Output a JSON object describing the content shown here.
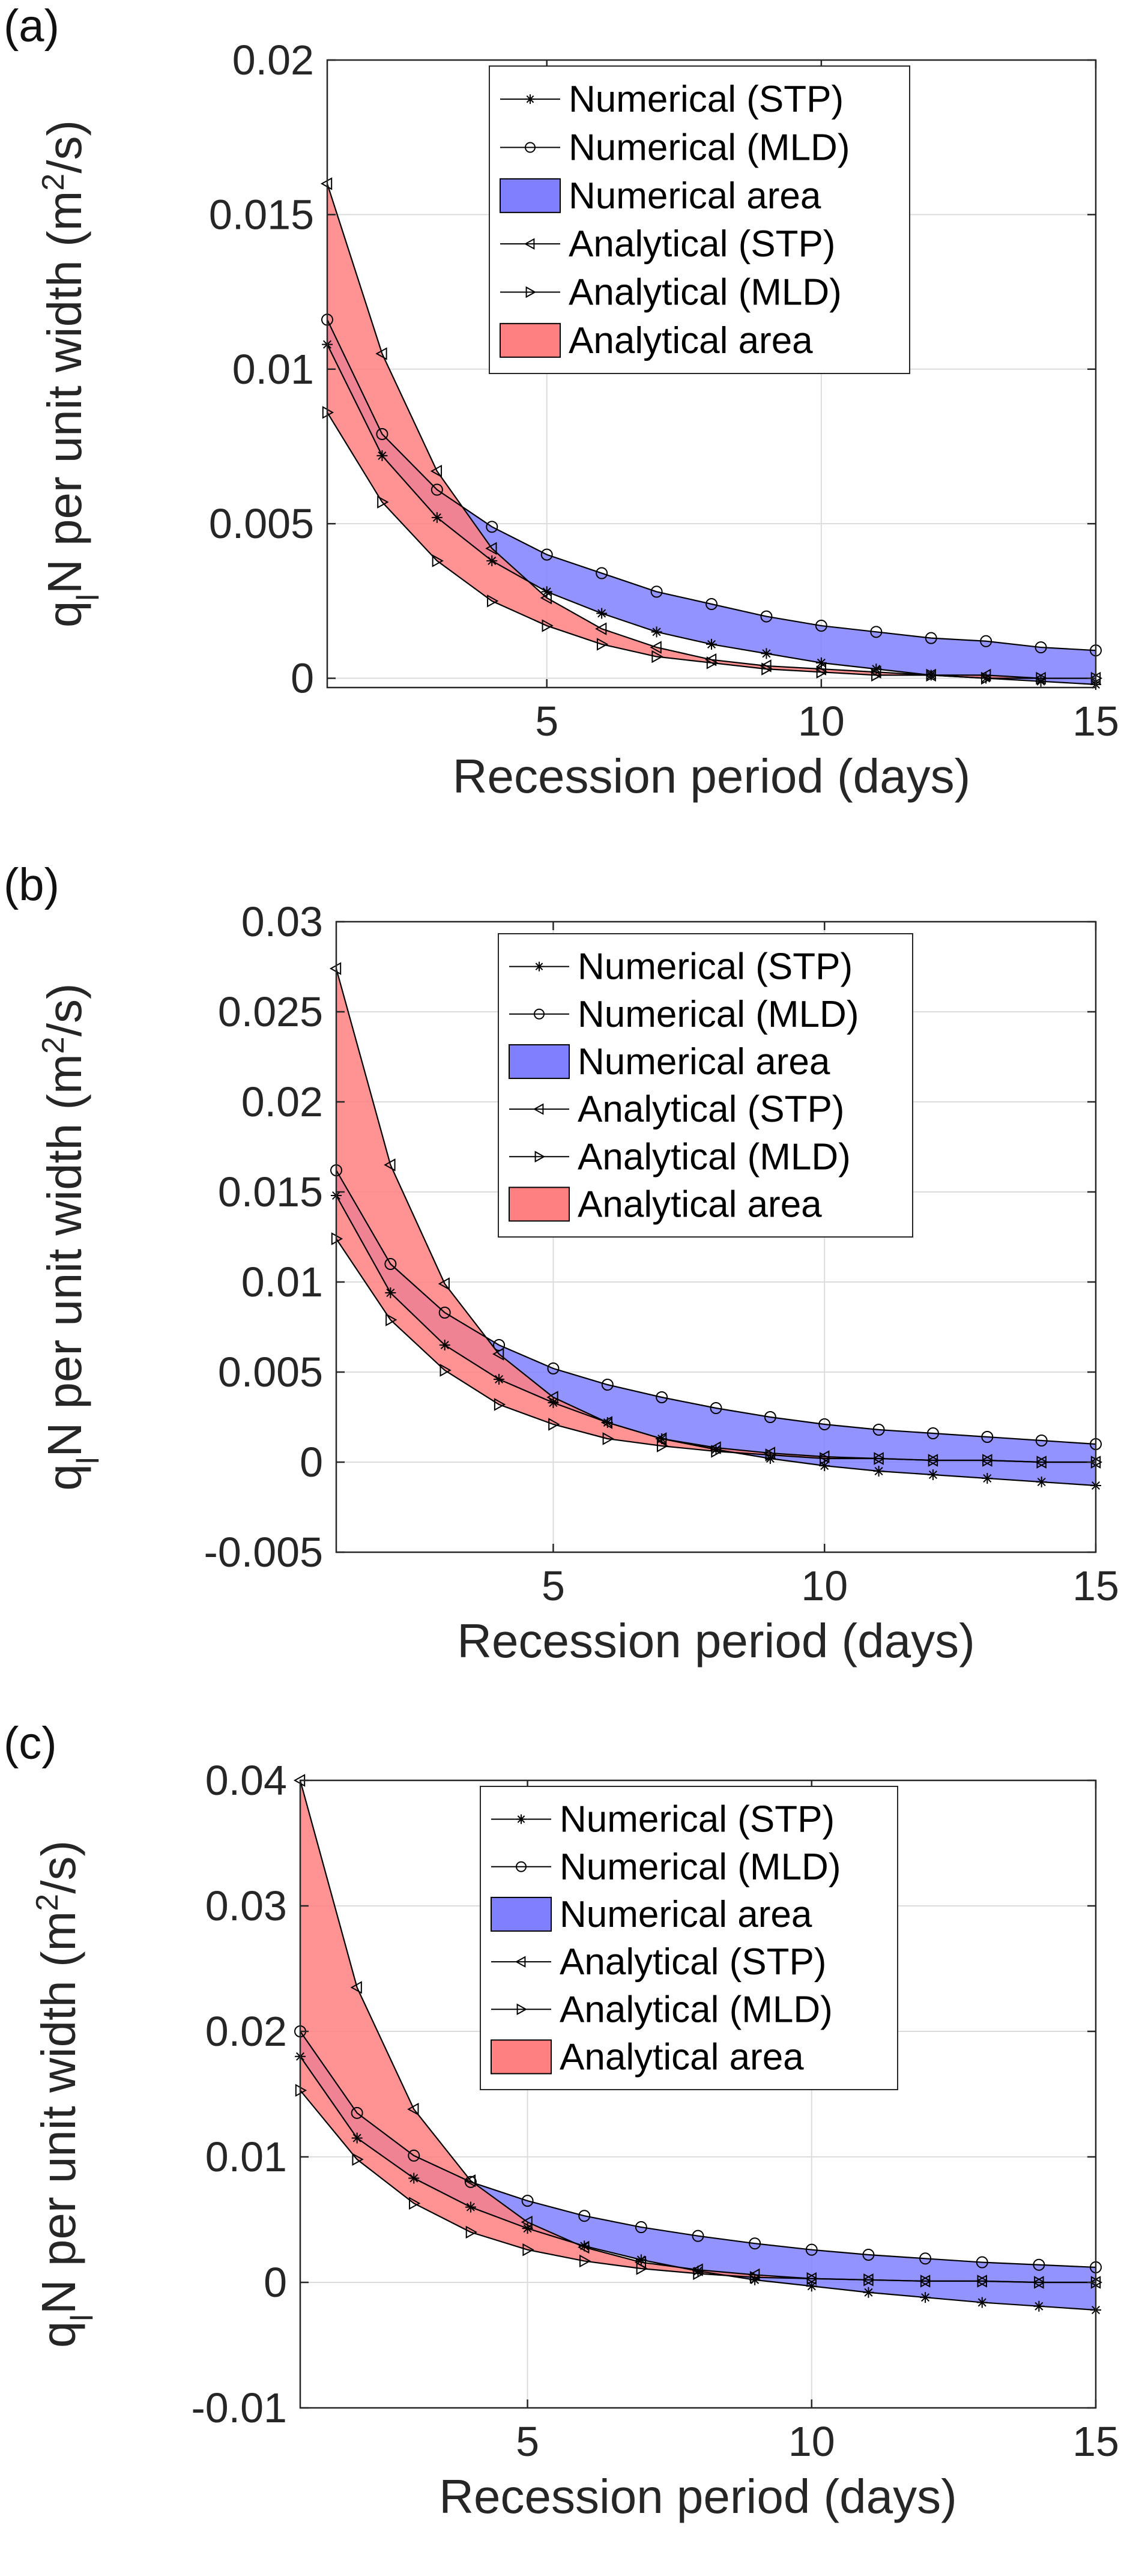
{
  "legend": [
    {
      "label": "Numerical (STP)",
      "kind": "line",
      "marker": "star"
    },
    {
      "label": "Numerical (MLD)",
      "kind": "line",
      "marker": "circle"
    },
    {
      "label": "Numerical area",
      "kind": "patch",
      "color": "#8080ff"
    },
    {
      "label": "Analytical (STP)",
      "kind": "line",
      "marker": "tri-left"
    },
    {
      "label": "Analytical (MLD)",
      "kind": "line",
      "marker": "tri-right"
    },
    {
      "label": "Analytical area",
      "kind": "patch",
      "color": "#ff8080"
    }
  ],
  "colors": {
    "numerical_area": "#8080ff",
    "analytical_area": "#ff8080",
    "line": "#000000",
    "grid": "#dcdcdc",
    "axes": "#262626"
  },
  "chart_data": [
    {
      "type": "area",
      "panel_label": "(a)",
      "xlabel": "Recession period (days)",
      "ylabel": "qlN per unit width (m²/s)",
      "ylabel_parts": {
        "q": "q",
        "sub": "l",
        "mid": "N per unit width (m",
        "sup": "2",
        "end": "/s)"
      },
      "xlim": [
        1,
        15
      ],
      "ylim": [
        -0.0003,
        0.02
      ],
      "xticks": [
        5,
        10,
        15
      ],
      "xtick_labels": [
        "5",
        "10",
        "15"
      ],
      "yticks": [
        0,
        0.005,
        0.01,
        0.015,
        0.02
      ],
      "ytick_labels": [
        "0",
        "0.005",
        "0.01",
        "0.015",
        "0.02"
      ],
      "grid": true,
      "legend_position": "top-right",
      "x": [
        1,
        2,
        3,
        4,
        5,
        6,
        7,
        8,
        9,
        10,
        11,
        12,
        13,
        14,
        15
      ],
      "series": [
        {
          "name": "Numerical (STP)",
          "marker": "star",
          "values": [
            0.0108,
            0.0072,
            0.0052,
            0.0038,
            0.0028,
            0.0021,
            0.0015,
            0.0011,
            0.0008,
            0.0005,
            0.0003,
            0.0001,
            0.0,
            -0.0001,
            -0.0002
          ]
        },
        {
          "name": "Numerical (MLD)",
          "marker": "circle",
          "values": [
            0.0116,
            0.0079,
            0.0061,
            0.0049,
            0.004,
            0.0034,
            0.0028,
            0.0024,
            0.002,
            0.0017,
            0.0015,
            0.0013,
            0.0012,
            0.001,
            0.0009
          ]
        },
        {
          "name": "Analytical (STP)",
          "marker": "tri-left",
          "values": [
            0.016,
            0.0105,
            0.0067,
            0.0042,
            0.0026,
            0.0016,
            0.001,
            0.0006,
            0.0004,
            0.0003,
            0.0002,
            0.0001,
            0.0001,
            0.0,
            0.0
          ]
        },
        {
          "name": "Analytical (MLD)",
          "marker": "tri-right",
          "values": [
            0.0086,
            0.0057,
            0.0038,
            0.0025,
            0.0017,
            0.0011,
            0.0007,
            0.0005,
            0.0003,
            0.0002,
            0.0001,
            0.0001,
            0.0,
            0.0,
            0.0
          ]
        }
      ],
      "areas": [
        {
          "name": "Numerical area",
          "between": [
            "Numerical (STP)",
            "Numerical (MLD)"
          ]
        },
        {
          "name": "Analytical area",
          "between": [
            "Analytical (STP)",
            "Analytical (MLD)"
          ]
        }
      ]
    },
    {
      "type": "area",
      "panel_label": "(b)",
      "xlabel": "Recession period (days)",
      "ylabel": "qlN per unit width (m²/s)",
      "ylabel_parts": {
        "q": "q",
        "sub": "l",
        "mid": "N per unit width (m",
        "sup": "2",
        "end": "/s)"
      },
      "xlim": [
        1,
        15
      ],
      "ylim": [
        -0.005,
        0.03
      ],
      "xticks": [
        5,
        10,
        15
      ],
      "xtick_labels": [
        "5",
        "10",
        "15"
      ],
      "yticks": [
        -0.005,
        0,
        0.005,
        0.01,
        0.015,
        0.02,
        0.025,
        0.03
      ],
      "ytick_labels": [
        "-0.005",
        "0",
        "0.005",
        "0.01",
        "0.015",
        "0.02",
        "0.025",
        "0.03"
      ],
      "grid": true,
      "legend_position": "top-right",
      "x": [
        1,
        2,
        3,
        4,
        5,
        6,
        7,
        8,
        9,
        10,
        11,
        12,
        13,
        14,
        15
      ],
      "series": [
        {
          "name": "Numerical (STP)",
          "marker": "star",
          "values": [
            0.0148,
            0.0094,
            0.0065,
            0.0046,
            0.0033,
            0.0022,
            0.0013,
            0.0007,
            0.0002,
            -0.0002,
            -0.0005,
            -0.0007,
            -0.0009,
            -0.0011,
            -0.0013
          ]
        },
        {
          "name": "Numerical (MLD)",
          "marker": "circle",
          "values": [
            0.0162,
            0.011,
            0.0083,
            0.0065,
            0.0052,
            0.0043,
            0.0036,
            0.003,
            0.0025,
            0.0021,
            0.0018,
            0.0016,
            0.0014,
            0.0012,
            0.001
          ]
        },
        {
          "name": "Analytical (STP)",
          "marker": "tri-left",
          "values": [
            0.0274,
            0.0165,
            0.0099,
            0.006,
            0.0036,
            0.0022,
            0.0013,
            0.0008,
            0.0005,
            0.0003,
            0.0002,
            0.0001,
            0.0001,
            0.0,
            0.0
          ]
        },
        {
          "name": "Analytical (MLD)",
          "marker": "tri-right",
          "values": [
            0.0124,
            0.0079,
            0.0051,
            0.0032,
            0.0021,
            0.0013,
            0.0009,
            0.0006,
            0.0004,
            0.0002,
            0.0002,
            0.0001,
            0.0001,
            0.0,
            0.0
          ]
        }
      ],
      "areas": [
        {
          "name": "Numerical area",
          "between": [
            "Numerical (STP)",
            "Numerical (MLD)"
          ]
        },
        {
          "name": "Analytical area",
          "between": [
            "Analytical (STP)",
            "Analytical (MLD)"
          ]
        }
      ]
    },
    {
      "type": "area",
      "panel_label": "(c)",
      "xlabel": "Recession period (days)",
      "ylabel": "qlN per unit width (m²/s)",
      "ylabel_parts": {
        "q": "q",
        "sub": "l",
        "mid": "N per unit width (m",
        "sup": "2",
        "end": "/s)"
      },
      "xlim": [
        1,
        15
      ],
      "ylim": [
        -0.01,
        0.04
      ],
      "xticks": [
        5,
        10,
        15
      ],
      "xtick_labels": [
        "5",
        "10",
        "15"
      ],
      "yticks": [
        -0.01,
        0,
        0.01,
        0.02,
        0.03,
        0.04
      ],
      "ytick_labels": [
        "-0.01",
        "0",
        "0.01",
        "0.02",
        "0.03",
        "0.04"
      ],
      "grid": true,
      "legend_position": "top-right",
      "x": [
        1,
        2,
        3,
        4,
        5,
        6,
        7,
        8,
        9,
        10,
        11,
        12,
        13,
        14,
        15
      ],
      "series": [
        {
          "name": "Numerical (STP)",
          "marker": "star",
          "values": [
            0.018,
            0.0115,
            0.0083,
            0.006,
            0.0043,
            0.0029,
            0.0018,
            0.0009,
            0.0002,
            -0.0003,
            -0.0008,
            -0.0012,
            -0.0016,
            -0.0019,
            -0.0022
          ]
        },
        {
          "name": "Numerical (MLD)",
          "marker": "circle",
          "values": [
            0.02,
            0.0135,
            0.0101,
            0.008,
            0.0065,
            0.0053,
            0.0044,
            0.0037,
            0.0031,
            0.0026,
            0.0022,
            0.0019,
            0.0016,
            0.0014,
            0.0012
          ]
        },
        {
          "name": "Analytical (STP)",
          "marker": "tri-left",
          "values": [
            0.04,
            0.0235,
            0.0138,
            0.0081,
            0.0048,
            0.0028,
            0.0016,
            0.001,
            0.0006,
            0.0003,
            0.0002,
            0.0001,
            0.0001,
            0.0,
            0.0
          ]
        },
        {
          "name": "Analytical (MLD)",
          "marker": "tri-right",
          "values": [
            0.0153,
            0.0098,
            0.0063,
            0.004,
            0.0026,
            0.0017,
            0.0011,
            0.0007,
            0.0004,
            0.0003,
            0.0002,
            0.0001,
            0.0001,
            0.0,
            0.0
          ]
        }
      ],
      "areas": [
        {
          "name": "Numerical area",
          "between": [
            "Numerical (STP)",
            "Numerical (MLD)"
          ]
        },
        {
          "name": "Analytical area",
          "between": [
            "Analytical (STP)",
            "Analytical (MLD)"
          ]
        }
      ]
    }
  ]
}
